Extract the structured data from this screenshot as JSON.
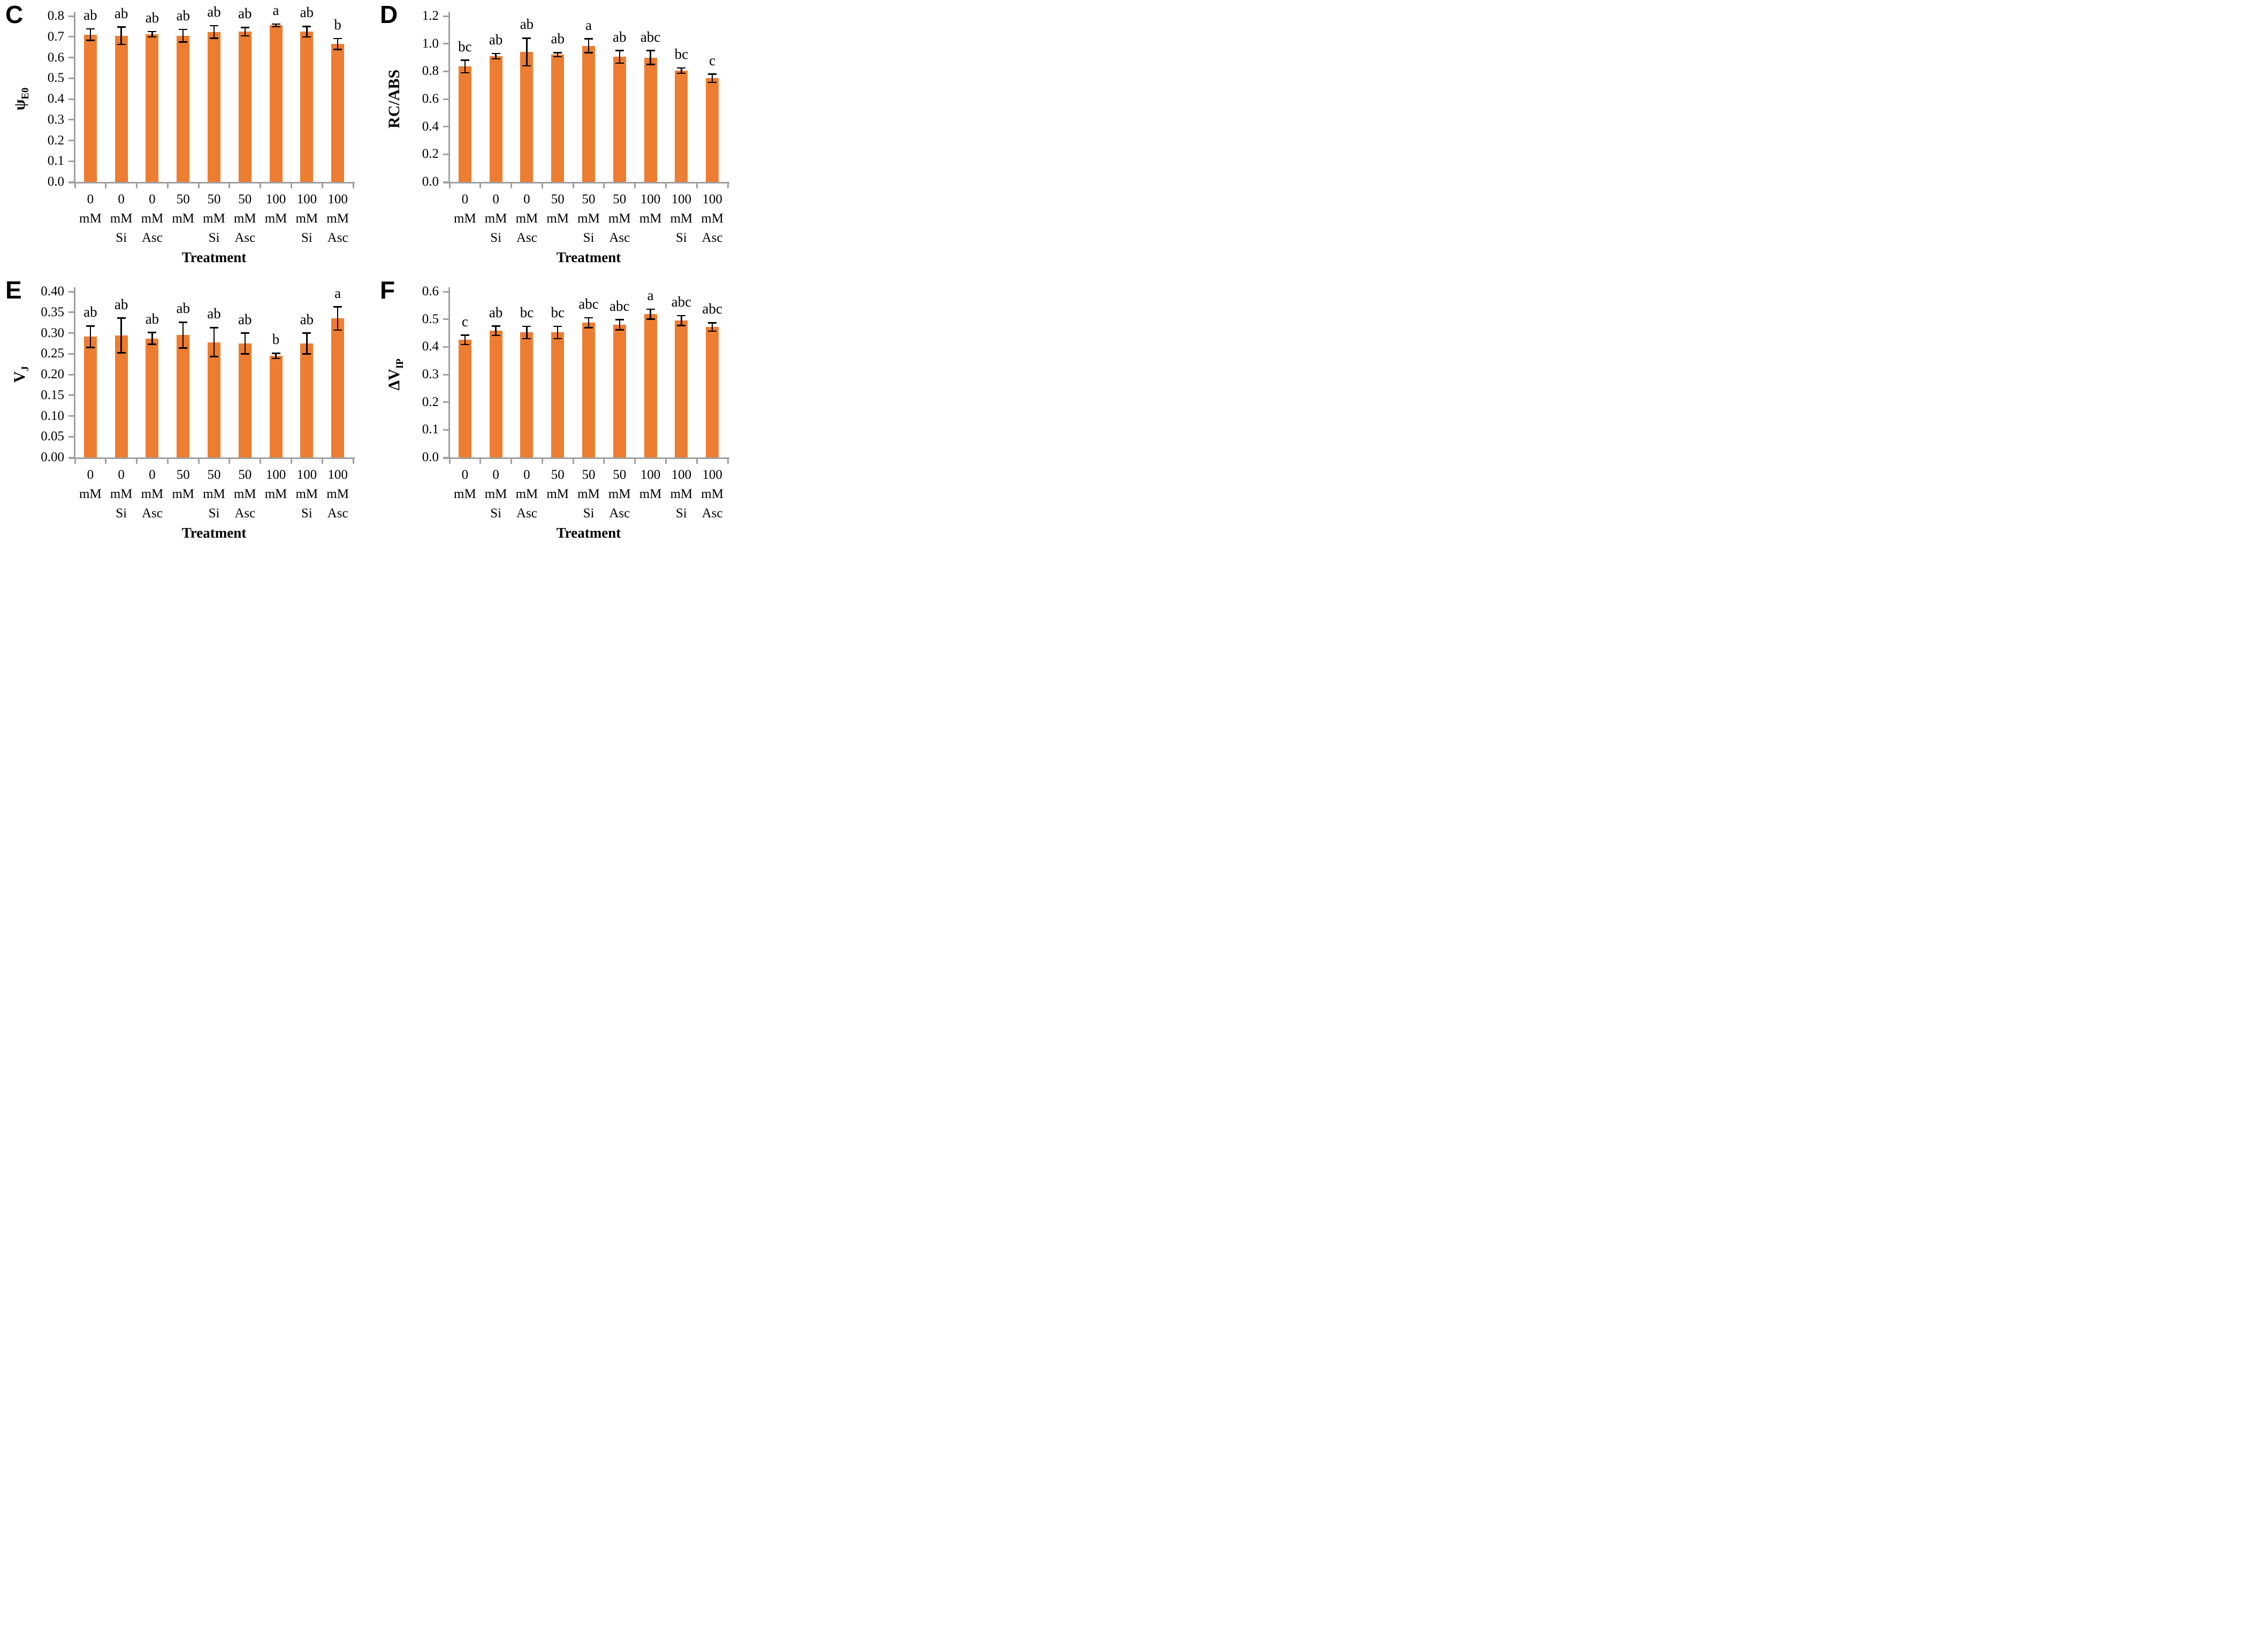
{
  "styles": {
    "bar_color": "#ED7D31",
    "axis_color": "#A0A0A0",
    "error_color": "#000000",
    "text_color": "#000000"
  },
  "x_categories": [
    {
      "amount": "0",
      "unit": "mM",
      "additive": ""
    },
    {
      "amount": "0",
      "unit": "mM",
      "additive": "Si"
    },
    {
      "amount": "0",
      "unit": "mM",
      "additive": "Asc"
    },
    {
      "amount": "50",
      "unit": "mM",
      "additive": ""
    },
    {
      "amount": "50",
      "unit": "mM",
      "additive": "Si"
    },
    {
      "amount": "50",
      "unit": "mM",
      "additive": "Asc"
    },
    {
      "amount": "100",
      "unit": "mM",
      "additive": ""
    },
    {
      "amount": "100",
      "unit": "mM",
      "additive": "Si"
    },
    {
      "amount": "100",
      "unit": "mM",
      "additive": "Asc"
    }
  ],
  "chart_data": [
    {
      "type": "bar",
      "panel": "C",
      "ylabel": "ψE0",
      "ylabel_main": "ψ",
      "ylabel_sub": "E0",
      "xlabel": "Treatment",
      "ylim": [
        0,
        0.8
      ],
      "ytick_step": 0.1,
      "ytick_decimals": 1,
      "grid": false,
      "categories": [
        "0 mM",
        "0 mM Si",
        "0 mM Asc",
        "50 mM",
        "50 mM Si",
        "50 mM Asc",
        "100 mM",
        "100 mM Si",
        "100 mM Asc"
      ],
      "values": [
        0.71,
        0.705,
        0.712,
        0.705,
        0.723,
        0.725,
        0.755,
        0.725,
        0.665
      ],
      "errors": [
        0.028,
        0.042,
        0.013,
        0.03,
        0.03,
        0.02,
        0.006,
        0.025,
        0.026
      ],
      "sig_letters": [
        "ab",
        "ab",
        "ab",
        "ab",
        "ab",
        "ab",
        "a",
        "ab",
        "b"
      ]
    },
    {
      "type": "bar",
      "panel": "D",
      "ylabel": "RC/ABS",
      "ylabel_main": "RC/ABS",
      "ylabel_sub": "",
      "xlabel": "Treatment",
      "ylim": [
        0,
        1.2
      ],
      "ytick_step": 0.2,
      "ytick_decimals": 1,
      "grid": false,
      "categories": [
        "0 mM",
        "0 mM Si",
        "0 mM Asc",
        "50 mM",
        "50 mM Si",
        "50 mM Asc",
        "100 mM",
        "100 mM Si",
        "100 mM Asc"
      ],
      "values": [
        0.835,
        0.91,
        0.94,
        0.92,
        0.985,
        0.905,
        0.9,
        0.805,
        0.75
      ],
      "errors": [
        0.045,
        0.02,
        0.1,
        0.015,
        0.05,
        0.045,
        0.05,
        0.02,
        0.03
      ],
      "sig_letters": [
        "bc",
        "ab",
        "ab",
        "ab",
        "a",
        "ab",
        "abc",
        "bc",
        "c"
      ]
    },
    {
      "type": "bar",
      "panel": "E",
      "ylabel": "VJ",
      "ylabel_main": "V",
      "ylabel_sub": "J",
      "xlabel": "Treatment",
      "ylim": [
        0,
        0.4
      ],
      "ytick_step": 0.05,
      "ytick_decimals": 2,
      "grid": false,
      "categories": [
        "0 mM",
        "0 mM Si",
        "0 mM Asc",
        "50 mM",
        "50 mM Si",
        "50 mM Asc",
        "100 mM",
        "100 mM Si",
        "100 mM Asc"
      ],
      "values": [
        0.291,
        0.294,
        0.287,
        0.295,
        0.278,
        0.275,
        0.245,
        0.275,
        0.335
      ],
      "errors": [
        0.026,
        0.042,
        0.014,
        0.031,
        0.035,
        0.025,
        0.006,
        0.025,
        0.028
      ],
      "sig_letters": [
        "ab",
        "ab",
        "ab",
        "ab",
        "ab",
        "ab",
        "b",
        "ab",
        "a"
      ]
    },
    {
      "type": "bar",
      "panel": "F",
      "ylabel": "ΔVIP",
      "ylabel_main": "ΔV",
      "ylabel_sub": "IP",
      "xlabel": "Treatment",
      "ylim": [
        0,
        0.6
      ],
      "ytick_step": 0.1,
      "ytick_decimals": 1,
      "grid": false,
      "categories": [
        "0 mM",
        "0 mM Si",
        "0 mM Asc",
        "50 mM",
        "50 mM Si",
        "50 mM Asc",
        "100 mM",
        "100 mM Si",
        "100 mM Asc"
      ],
      "values": [
        0.425,
        0.458,
        0.452,
        0.452,
        0.487,
        0.48,
        0.518,
        0.495,
        0.472
      ],
      "errors": [
        0.017,
        0.017,
        0.022,
        0.022,
        0.018,
        0.018,
        0.018,
        0.018,
        0.015
      ],
      "sig_letters": [
        "c",
        "ab",
        "bc",
        "bc",
        "abc",
        "abc",
        "a",
        "abc",
        "abc"
      ]
    }
  ]
}
